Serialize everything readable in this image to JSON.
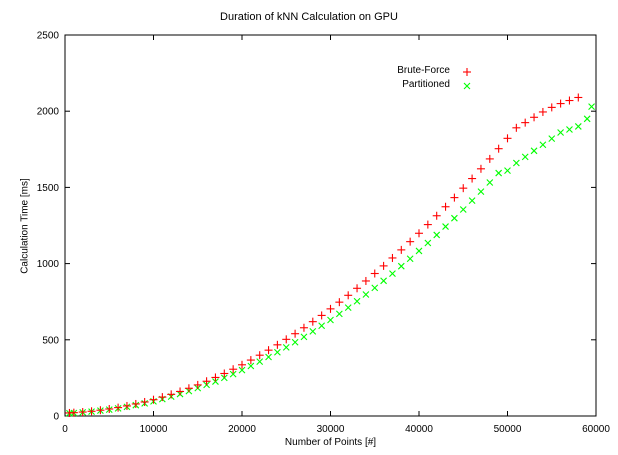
{
  "chart_data": {
    "type": "scatter",
    "title": "Duration of kNN Calculation on GPU",
    "xlabel": "Number of Points [#]",
    "ylabel": "Calculation Time [ms]",
    "xlim": [
      0,
      60000
    ],
    "ylim": [
      0,
      2500
    ],
    "x_ticks": [
      0,
      10000,
      20000,
      30000,
      40000,
      50000,
      60000
    ],
    "y_ticks": [
      0,
      500,
      1000,
      1500,
      2000,
      2500
    ],
    "grid": false,
    "legend_position": "top-right",
    "series": [
      {
        "name": "Brute-Force",
        "marker": "plus",
        "color": "#ff0000",
        "x": [
          500,
          1000,
          2000,
          3000,
          4000,
          5000,
          6000,
          7000,
          8000,
          9000,
          10000,
          11000,
          12000,
          13000,
          14000,
          15000,
          16000,
          17000,
          18000,
          19000,
          20000,
          21000,
          22000,
          23000,
          24000,
          25000,
          26000,
          27000,
          28000,
          29000,
          30000,
          31000,
          32000,
          33000,
          34000,
          35000,
          36000,
          37000,
          38000,
          39000,
          40000,
          41000,
          42000,
          43000,
          44000,
          45000,
          46000,
          47000,
          48000,
          49000,
          50000,
          51000,
          52000,
          53000,
          54000,
          55000,
          56000,
          57000,
          58000
        ],
        "y": [
          20,
          22,
          26,
          31,
          38,
          46,
          55,
          66,
          79,
          92,
          107,
          124,
          142,
          161,
          182,
          204,
          228,
          253,
          279,
          307,
          336,
          367,
          399,
          432,
          467,
          503,
          540,
          579,
          619,
          660,
          703,
          747,
          792,
          838,
          886,
          935,
          985,
          1037,
          1090,
          1144,
          1199,
          1256,
          1314,
          1373,
          1433,
          1495,
          1558,
          1622,
          1687,
          1754,
          1822,
          1891,
          1925,
          1960,
          1995,
          2025,
          2050,
          2070,
          2090
        ]
      },
      {
        "name": "Partitioned",
        "marker": "cross",
        "color": "#00ff00",
        "x": [
          500,
          1000,
          2000,
          3000,
          4000,
          5000,
          6000,
          7000,
          8000,
          9000,
          10000,
          11000,
          12000,
          13000,
          14000,
          15000,
          16000,
          17000,
          18000,
          19000,
          20000,
          21000,
          22000,
          23000,
          24000,
          25000,
          26000,
          27000,
          28000,
          29000,
          30000,
          31000,
          32000,
          33000,
          34000,
          35000,
          36000,
          37000,
          38000,
          39000,
          40000,
          41000,
          42000,
          43000,
          44000,
          45000,
          46000,
          47000,
          48000,
          49000,
          50000,
          51000,
          52000,
          53000,
          54000,
          55000,
          56000,
          57000,
          58000,
          59000,
          59500
        ],
        "y": [
          18,
          20,
          24,
          29,
          35,
          42,
          50,
          60,
          71,
          83,
          96,
          111,
          127,
          144,
          163,
          183,
          204,
          226,
          250,
          275,
          301,
          328,
          357,
          387,
          418,
          450,
          484,
          519,
          555,
          592,
          630,
          670,
          711,
          753,
          797,
          841,
          887,
          934,
          983,
          1032,
          1083,
          1135,
          1188,
          1243,
          1298,
          1355,
          1413,
          1472,
          1532,
          1594,
          1610,
          1660,
          1700,
          1740,
          1780,
          1820,
          1860,
          1880,
          1900,
          1950,
          2030
        ]
      }
    ]
  }
}
